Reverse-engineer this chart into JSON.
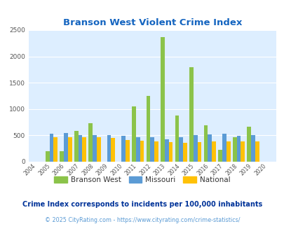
{
  "title": "Branson West Violent Crime Index",
  "years": [
    2004,
    2005,
    2006,
    2007,
    2008,
    2009,
    2010,
    2011,
    2012,
    2013,
    2014,
    2015,
    2016,
    2017,
    2018,
    2019,
    2020
  ],
  "branson_west": [
    0,
    200,
    200,
    580,
    730,
    0,
    0,
    1050,
    1250,
    2370,
    880,
    1800,
    690,
    230,
    460,
    670,
    0
  ],
  "missouri": [
    0,
    530,
    545,
    500,
    500,
    500,
    490,
    470,
    470,
    430,
    460,
    500,
    520,
    530,
    490,
    500,
    0
  ],
  "national": [
    0,
    470,
    470,
    470,
    460,
    450,
    410,
    400,
    390,
    370,
    365,
    370,
    385,
    390,
    380,
    380,
    0
  ],
  "color_bw": "#8bc34a",
  "color_mo": "#5b9bd5",
  "color_nat": "#ffc107",
  "bg_color": "#ddeeff",
  "grid_color": "#ffffff",
  "ylim": [
    0,
    2500
  ],
  "yticks": [
    0,
    500,
    1000,
    1500,
    2000,
    2500
  ],
  "subtitle": "Crime Index corresponds to incidents per 100,000 inhabitants",
  "footer": "© 2025 CityRating.com - https://www.cityrating.com/crime-statistics/",
  "legend_labels": [
    "Branson West",
    "Missouri",
    "National"
  ],
  "title_color": "#1565c0",
  "subtitle_color": "#003399",
  "footer_color": "#5b9bd5"
}
